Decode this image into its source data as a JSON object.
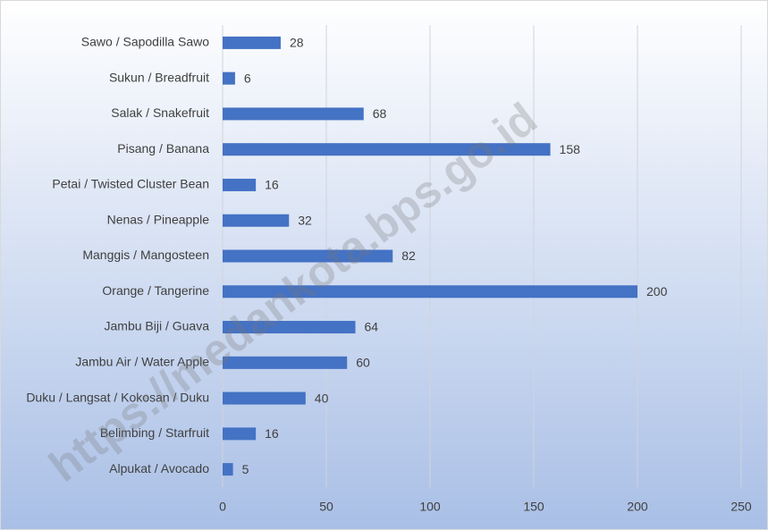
{
  "chart_data": {
    "type": "bar",
    "orientation": "horizontal",
    "categories": [
      "Sawo / Sapodilla Sawo",
      "Sukun / Breadfruit",
      "Salak / Snakefruit",
      "Pisang / Banana",
      "Petai / Twisted Cluster Bean",
      "Nenas / Pineapple",
      "Manggis / Mangosteen",
      "Orange / Tangerine",
      "Jambu Biji / Guava",
      "Jambu Air / Water Apple",
      "Duku / Langsat / Kokosan / Duku",
      "Belimbing / Starfruit",
      "Alpukat / Avocado"
    ],
    "values": [
      28,
      6,
      68,
      158,
      16,
      32,
      82,
      200,
      64,
      60,
      40,
      16,
      5
    ],
    "color": "#4472c4",
    "xlim": [
      0,
      250
    ],
    "xticks": [
      0,
      50,
      100,
      150,
      200,
      250
    ],
    "grid": true,
    "watermark": "https://medankota.bps.go.id"
  }
}
